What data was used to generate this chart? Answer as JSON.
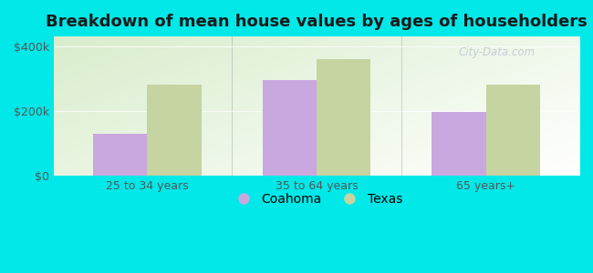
{
  "title": "Breakdown of mean house values by ages of householders",
  "categories": [
    "25 to 34 years",
    "35 to 64 years",
    "65 years+"
  ],
  "coahoma_values": [
    130000,
    295000,
    195000
  ],
  "texas_values": [
    280000,
    360000,
    280000
  ],
  "coahoma_color": "#c9a8e0",
  "texas_color": "#c5d4a0",
  "background_color": "#00e8e8",
  "ylabel_ticks": [
    0,
    200000,
    400000
  ],
  "ylabel_labels": [
    "$0",
    "$200k",
    "$400k"
  ],
  "ylim": [
    0,
    430000
  ],
  "legend_labels": [
    "Coahoma",
    "Texas"
  ],
  "watermark": "City-Data.com",
  "bar_width": 0.32,
  "title_fontsize": 13,
  "tick_fontsize": 9,
  "legend_fontsize": 10
}
